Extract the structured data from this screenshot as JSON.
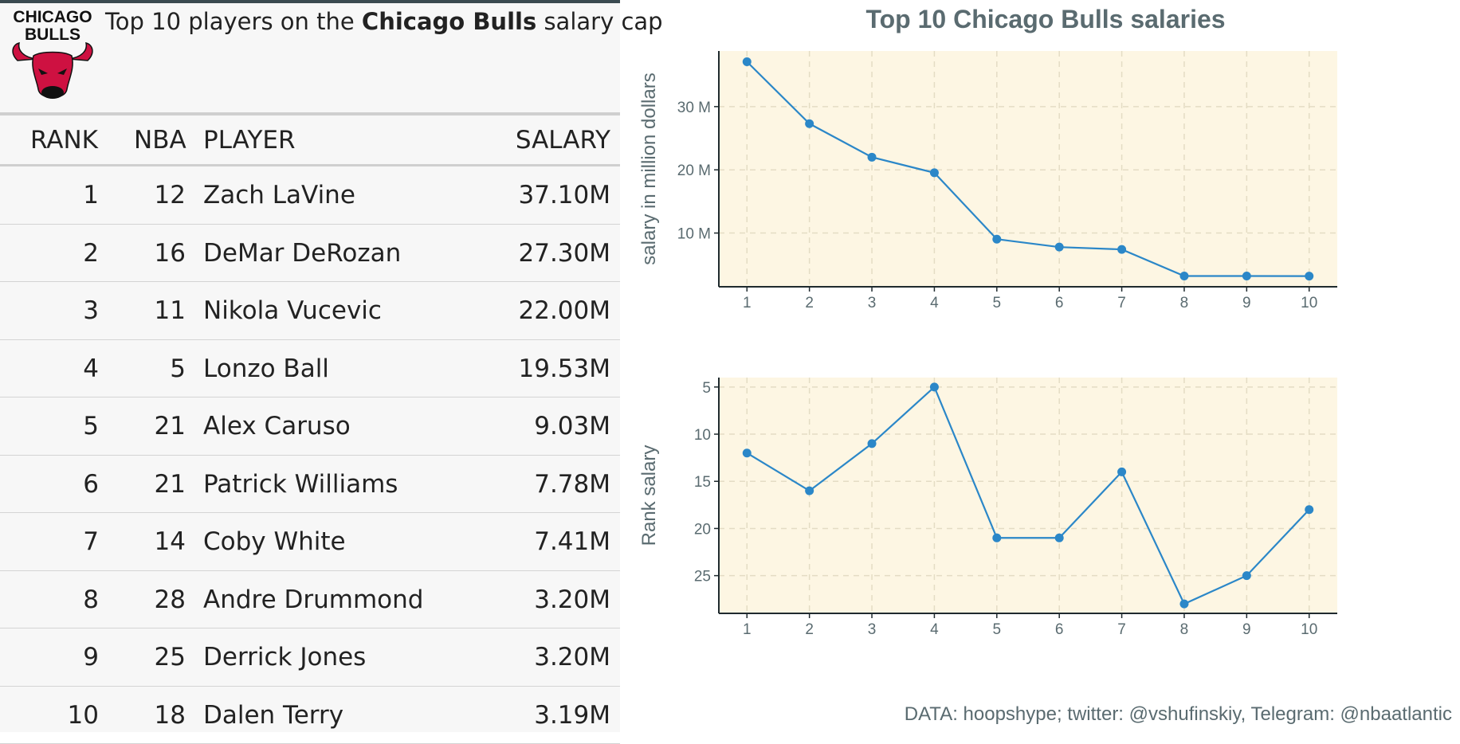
{
  "table": {
    "logo_text_line1": "CHICAGO",
    "logo_text_line2": "BULLS",
    "title_pre": "Top 10 players on the ",
    "title_bold": "Chicago Bulls",
    "title_post": " salary cap",
    "headers": {
      "rank": "RANK",
      "nba": "NBA",
      "player": "PLAYER",
      "salary": "SALARY"
    },
    "rows": [
      {
        "rank": "1",
        "nba": "12",
        "player": "Zach LaVine",
        "salary": "37.10M"
      },
      {
        "rank": "2",
        "nba": "16",
        "player": "DeMar DeRozan",
        "salary": "27.30M"
      },
      {
        "rank": "3",
        "nba": "11",
        "player": "Nikola Vucevic",
        "salary": "22.00M"
      },
      {
        "rank": "4",
        "nba": "5",
        "player": "Lonzo Ball",
        "salary": "19.53M"
      },
      {
        "rank": "5",
        "nba": "21",
        "player": "Alex Caruso",
        "salary": "9.03M"
      },
      {
        "rank": "6",
        "nba": "21",
        "player": "Patrick Williams",
        "salary": "7.78M"
      },
      {
        "rank": "7",
        "nba": "14",
        "player": "Coby White",
        "salary": "7.41M"
      },
      {
        "rank": "8",
        "nba": "28",
        "player": "Andre Drummond",
        "salary": "3.20M"
      },
      {
        "rank": "9",
        "nba": "25",
        "player": "Derrick Jones",
        "salary": "3.20M"
      },
      {
        "rank": "10",
        "nba": "18",
        "player": "Dalen Terry",
        "salary": "3.19M"
      }
    ]
  },
  "chart_data": [
    {
      "type": "line",
      "title": "Top 10 Chicago Bulls salaries",
      "ylabel": "salary in million dollars",
      "xlabel": "",
      "x": [
        1,
        2,
        3,
        4,
        5,
        6,
        7,
        8,
        9,
        10
      ],
      "values": [
        37.1,
        27.3,
        22.0,
        19.53,
        9.03,
        7.78,
        7.41,
        3.2,
        3.2,
        3.19
      ],
      "xlim": [
        0.55,
        10.45
      ],
      "ylim": [
        1.5,
        38.8
      ],
      "yticks": [
        10,
        20,
        30
      ],
      "ytick_labels": [
        "10 M",
        "20 M",
        "30 M"
      ],
      "xticks": [
        "1",
        "2",
        "3",
        "4",
        "5",
        "6",
        "7",
        "8",
        "9",
        "10"
      ],
      "grid": true,
      "color": "#2b87c8",
      "background": "#fdf6e3"
    },
    {
      "type": "line",
      "ylabel": "Rank salary",
      "xlabel": "",
      "x": [
        1,
        2,
        3,
        4,
        5,
        6,
        7,
        8,
        9,
        10
      ],
      "values": [
        12,
        16,
        11,
        5,
        21,
        21,
        14,
        28,
        25,
        18
      ],
      "y_reversed": true,
      "xlim": [
        0.55,
        10.45
      ],
      "ylim": [
        4,
        29
      ],
      "yticks": [
        5,
        10,
        15,
        20,
        25
      ],
      "ytick_labels": [
        "5",
        "10",
        "15",
        "20",
        "25"
      ],
      "xticks": [
        "1",
        "2",
        "3",
        "4",
        "5",
        "6",
        "7",
        "8",
        "9",
        "10"
      ],
      "grid": true,
      "color": "#2b87c8",
      "background": "#fdf6e3"
    }
  ],
  "caption": "DATA: hoopshype; twitter: @vshufinskiy, Telegram: @nbaatlantic"
}
